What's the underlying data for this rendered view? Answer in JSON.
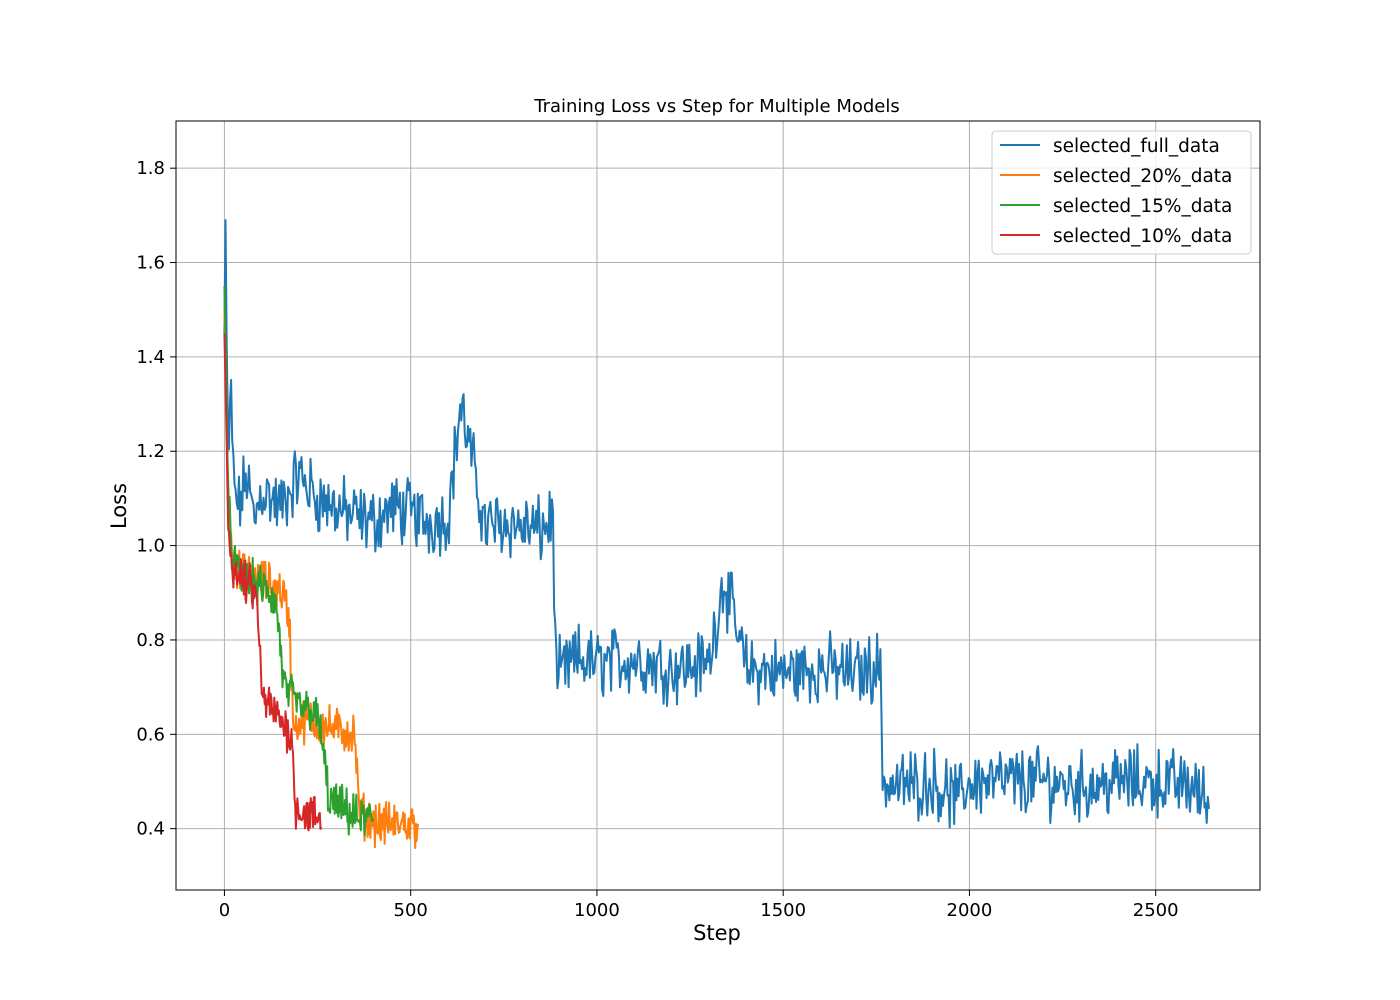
{
  "chart_data": {
    "type": "line",
    "title": "Training Loss vs Step for Multiple Models",
    "xlabel": "Step",
    "ylabel": "Loss",
    "xlim": [
      -130,
      2780
    ],
    "ylim": [
      0.27,
      1.9
    ],
    "xticks": [
      0,
      500,
      1000,
      1500,
      2000,
      2500
    ],
    "xtick_labels": [
      "0",
      "500",
      "1000",
      "1500",
      "2000",
      "2500"
    ],
    "yticks": [
      0.4,
      0.6,
      0.8,
      1.0,
      1.2,
      1.4,
      1.6,
      1.8
    ],
    "ytick_labels": [
      "0.4",
      "0.6",
      "0.8",
      "1.0",
      "1.2",
      "1.4",
      "1.6",
      "1.8"
    ],
    "grid": true,
    "legend_position": "top-right",
    "series": [
      {
        "name": "selected_full_data",
        "color": "#1f77b4",
        "points": [
          [
            0,
            1.45
          ],
          [
            2,
            1.83
          ],
          [
            4,
            1.55
          ],
          [
            8,
            1.3
          ],
          [
            12,
            1.2
          ],
          [
            18,
            1.32
          ],
          [
            25,
            1.12
          ],
          [
            40,
            1.08
          ],
          [
            60,
            1.15
          ],
          [
            80,
            1.05
          ],
          [
            100,
            1.12
          ],
          [
            150,
            1.08
          ],
          [
            200,
            1.15
          ],
          [
            250,
            1.1
          ],
          [
            300,
            1.08
          ],
          [
            350,
            1.06
          ],
          [
            400,
            1.05
          ],
          [
            450,
            1.08
          ],
          [
            500,
            1.07
          ],
          [
            550,
            1.05
          ],
          [
            600,
            1.06
          ],
          [
            634,
            1.3
          ],
          [
            700,
            1.04
          ],
          [
            750,
            1.05
          ],
          [
            800,
            1.04
          ],
          [
            850,
            1.03
          ],
          [
            882,
            1.06
          ],
          [
            890,
            0.72
          ],
          [
            950,
            0.76
          ],
          [
            1000,
            0.75
          ],
          [
            1100,
            0.76
          ],
          [
            1200,
            0.74
          ],
          [
            1300,
            0.75
          ],
          [
            1340,
            0.93
          ],
          [
            1400,
            0.74
          ],
          [
            1500,
            0.73
          ],
          [
            1600,
            0.74
          ],
          [
            1700,
            0.73
          ],
          [
            1760,
            0.75
          ],
          [
            1768,
            0.5
          ],
          [
            1800,
            0.49
          ],
          [
            1900,
            0.5
          ],
          [
            1970,
            0.46
          ],
          [
            2000,
            0.5
          ],
          [
            2100,
            0.5
          ],
          [
            2200,
            0.5
          ],
          [
            2300,
            0.49
          ],
          [
            2400,
            0.5
          ],
          [
            2500,
            0.5
          ],
          [
            2600,
            0.49
          ],
          [
            2645,
            0.45
          ]
        ],
        "noise": 0.055
      },
      {
        "name": "selected_20%_data",
        "color": "#ff7f0e",
        "points": [
          [
            0,
            1.5
          ],
          [
            4,
            1.35
          ],
          [
            10,
            1.1
          ],
          [
            20,
            0.98
          ],
          [
            40,
            0.94
          ],
          [
            80,
            0.93
          ],
          [
            120,
            0.92
          ],
          [
            160,
            0.9
          ],
          [
            175,
            0.83
          ],
          [
            185,
            0.62
          ],
          [
            220,
            0.63
          ],
          [
            260,
            0.62
          ],
          [
            300,
            0.61
          ],
          [
            350,
            0.6
          ],
          [
            360,
            0.45
          ],
          [
            380,
            0.42
          ],
          [
            420,
            0.41
          ],
          [
            470,
            0.41
          ],
          [
            520,
            0.41
          ]
        ],
        "noise": 0.035
      },
      {
        "name": "selected_15%_data",
        "color": "#2ca02c",
        "points": [
          [
            0,
            1.55
          ],
          [
            4,
            1.4
          ],
          [
            10,
            1.1
          ],
          [
            20,
            0.98
          ],
          [
            40,
            0.93
          ],
          [
            80,
            0.92
          ],
          [
            120,
            0.9
          ],
          [
            140,
            0.87
          ],
          [
            160,
            0.7
          ],
          [
            200,
            0.66
          ],
          [
            240,
            0.65
          ],
          [
            260,
            0.6
          ],
          [
            280,
            0.46
          ],
          [
            320,
            0.44
          ],
          [
            360,
            0.42
          ],
          [
            400,
            0.42
          ]
        ],
        "noise": 0.035
      },
      {
        "name": "selected_10%_data",
        "color": "#d62728",
        "points": [
          [
            0,
            1.45
          ],
          [
            4,
            1.3
          ],
          [
            10,
            1.05
          ],
          [
            20,
            0.96
          ],
          [
            40,
            0.93
          ],
          [
            60,
            0.92
          ],
          [
            80,
            0.9
          ],
          [
            90,
            0.86
          ],
          [
            100,
            0.68
          ],
          [
            130,
            0.65
          ],
          [
            160,
            0.62
          ],
          [
            180,
            0.6
          ],
          [
            190,
            0.45
          ],
          [
            220,
            0.43
          ],
          [
            260,
            0.42
          ]
        ],
        "noise": 0.035
      }
    ]
  }
}
